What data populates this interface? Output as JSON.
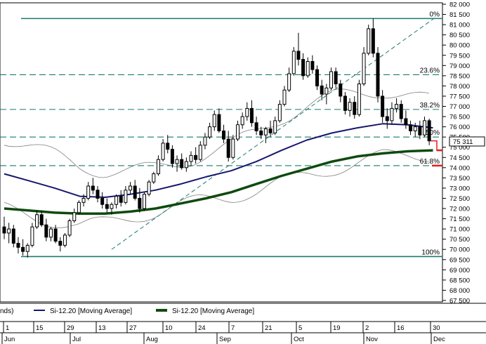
{
  "colors": {
    "background": "#ffffff",
    "fib_line": "#1a7a6e",
    "ma_short": "#17176e",
    "ma_long": "#0f4a0f",
    "bands": "#808080",
    "candle": "#000000",
    "marker": "#e0201e",
    "price_box_border": "#000000"
  },
  "legend": {
    "prefix": "nds)",
    "items": [
      {
        "label": "Si-12.20 [Moving Average]",
        "color": "#17176e"
      },
      {
        "label": "Si-12.20 [Moving Average]",
        "color": "#0f4a0f"
      }
    ]
  },
  "current_price": "75 311",
  "chart_data": {
    "type": "candlestick",
    "title": "",
    "xlabel": "",
    "ylabel": "",
    "ylim": [
      67500,
      82000
    ],
    "y_ticks": [
      "82 000",
      "81 500",
      "81 000",
      "80 500",
      "80 000",
      "79 500",
      "79 000",
      "78 500",
      "78 000",
      "77 500",
      "77 000",
      "76 500",
      "76 000",
      "75 500",
      "75 000",
      "74 500",
      "74 000",
      "73 500",
      "73 000",
      "72 500",
      "72 000",
      "71 500",
      "71 000",
      "70 500",
      "70 000",
      "69 500",
      "69 000",
      "68 500",
      "68 000",
      "67 500"
    ],
    "x_day_ticks": [
      "1",
      "15",
      "29",
      "13",
      "27",
      "10",
      "24",
      "7",
      "21",
      "5",
      "19",
      "2",
      "16",
      "30"
    ],
    "x_month_labels": [
      "Jun",
      "Jul",
      "Aug",
      "Sep",
      "Oct",
      "Nov",
      "Dec"
    ],
    "fibonacci": [
      {
        "label": "0%",
        "value": 81300
      },
      {
        "label": "23.6%",
        "value": 78550
      },
      {
        "label": "38.2%",
        "value": 76850
      },
      {
        "label": "50%",
        "value": 75500
      },
      {
        "label": "61.8%",
        "value": 74100
      },
      {
        "label": "100%",
        "value": 69650
      }
    ],
    "trendline": {
      "from": {
        "day": 23,
        "value": 70000
      },
      "to": {
        "day": 147,
        "value": 81300
      }
    },
    "series": [
      {
        "name": "Si-12.20 [Moving Average]",
        "points": [
          [
            0,
            73700
          ],
          [
            10,
            73350
          ],
          [
            20,
            73000
          ],
          [
            30,
            72600
          ],
          [
            40,
            72550
          ],
          [
            50,
            72700
          ],
          [
            60,
            72900
          ],
          [
            70,
            73200
          ],
          [
            80,
            73550
          ],
          [
            90,
            73850
          ],
          [
            100,
            74300
          ],
          [
            110,
            74850
          ],
          [
            120,
            75350
          ],
          [
            130,
            75700
          ],
          [
            140,
            75950
          ],
          [
            150,
            76150
          ],
          [
            160,
            76100
          ],
          [
            170,
            75950
          ]
        ]
      },
      {
        "name": "Si-12.20 [Moving Average]",
        "points": [
          [
            0,
            72000
          ],
          [
            10,
            71900
          ],
          [
            20,
            71800
          ],
          [
            30,
            71750
          ],
          [
            40,
            71750
          ],
          [
            50,
            71850
          ],
          [
            60,
            72000
          ],
          [
            70,
            72250
          ],
          [
            80,
            72500
          ],
          [
            90,
            72800
          ],
          [
            100,
            73200
          ],
          [
            110,
            73600
          ],
          [
            120,
            73950
          ],
          [
            130,
            74300
          ],
          [
            140,
            74550
          ],
          [
            150,
            74700
          ],
          [
            160,
            74800
          ],
          [
            170,
            74850
          ]
        ]
      }
    ],
    "candles": [
      [
        0,
        71100,
        71600,
        70500,
        70800
      ],
      [
        1,
        70800,
        71300,
        70300,
        71000
      ],
      [
        2,
        71000,
        71200,
        70100,
        70300
      ],
      [
        3,
        70300,
        70600,
        69800,
        70100
      ],
      [
        4,
        70100,
        70500,
        69700,
        69900
      ],
      [
        5,
        69900,
        70300,
        69600,
        70200
      ],
      [
        6,
        70200,
        71300,
        70100,
        71100
      ],
      [
        7,
        71100,
        71900,
        71000,
        71700
      ],
      [
        8,
        71700,
        71900,
        71100,
        71200
      ],
      [
        9,
        71200,
        71500,
        70400,
        70600
      ],
      [
        10,
        70600,
        71100,
        70400,
        71000
      ],
      [
        11,
        71000,
        71200,
        70300,
        70400
      ],
      [
        12,
        70400,
        70600,
        69900,
        70200
      ],
      [
        13,
        70200,
        70800,
        70100,
        70700
      ],
      [
        14,
        70700,
        71500,
        70600,
        71400
      ],
      [
        15,
        71400,
        72000,
        71300,
        71800
      ],
      [
        16,
        71800,
        72400,
        71700,
        72300
      ],
      [
        17,
        72300,
        72700,
        72100,
        72500
      ],
      [
        18,
        72500,
        73300,
        72400,
        73100
      ],
      [
        19,
        73100,
        73500,
        72700,
        72900
      ],
      [
        20,
        72900,
        73100,
        72300,
        72500
      ],
      [
        21,
        72500,
        72800,
        72000,
        72200
      ],
      [
        22,
        72200,
        72500,
        71800,
        72000
      ],
      [
        23,
        72000,
        72300,
        71700,
        72200
      ],
      [
        24,
        72200,
        72700,
        72000,
        72600
      ],
      [
        25,
        72600,
        72900,
        72100,
        72300
      ],
      [
        26,
        72300,
        73100,
        72200,
        72900
      ],
      [
        27,
        72900,
        73300,
        72700,
        73100
      ],
      [
        28,
        73100,
        73400,
        72400,
        72500
      ],
      [
        29,
        72500,
        73000,
        71800,
        72000
      ],
      [
        30,
        72000,
        72800,
        71900,
        72700
      ],
      [
        31,
        72700,
        73400,
        72600,
        73300
      ],
      [
        32,
        73300,
        73800,
        73200,
        73700
      ],
      [
        33,
        73700,
        74600,
        73600,
        74400
      ],
      [
        34,
        74400,
        75400,
        74300,
        75200
      ],
      [
        35,
        75200,
        75600,
        74700,
        74900
      ],
      [
        36,
        74900,
        75100,
        74000,
        74200
      ],
      [
        37,
        74200,
        74600,
        73800,
        74400
      ],
      [
        38,
        74400,
        74700,
        73900,
        74000
      ],
      [
        39,
        74000,
        74500,
        73800,
        74300
      ],
      [
        40,
        74300,
        74800,
        74100,
        74600
      ],
      [
        41,
        74600,
        75000,
        74200,
        74400
      ],
      [
        42,
        74400,
        75300,
        74300,
        75100
      ],
      [
        43,
        75100,
        75700,
        74900,
        75500
      ],
      [
        44,
        75500,
        76200,
        75400,
        76000
      ],
      [
        45,
        76000,
        76800,
        75800,
        76600
      ],
      [
        46,
        76600,
        76900,
        75700,
        75800
      ],
      [
        47,
        75800,
        76100,
        75200,
        75400
      ],
      [
        48,
        75400,
        75800,
        74300,
        74500
      ],
      [
        49,
        74500,
        75600,
        74400,
        75400
      ],
      [
        50,
        75400,
        76300,
        75300,
        76100
      ],
      [
        51,
        76100,
        76700,
        75900,
        76500
      ],
      [
        52,
        76500,
        77200,
        76300,
        76900
      ],
      [
        53,
        76900,
        77300,
        76000,
        76200
      ],
      [
        54,
        76200,
        76500,
        75600,
        75800
      ],
      [
        55,
        75800,
        76000,
        75400,
        75600
      ],
      [
        56,
        75600,
        76000,
        75200,
        75900
      ],
      [
        57,
        75900,
        76300,
        75500,
        75700
      ],
      [
        58,
        75700,
        76500,
        75600,
        76300
      ],
      [
        59,
        76300,
        77300,
        76200,
        77100
      ],
      [
        60,
        77100,
        78000,
        77000,
        77800
      ],
      [
        61,
        77800,
        78900,
        77700,
        78600
      ],
      [
        62,
        78600,
        79900,
        78500,
        79700
      ],
      [
        63,
        79700,
        80600,
        79000,
        79300
      ],
      [
        64,
        79300,
        79600,
        78300,
        78500
      ],
      [
        65,
        78500,
        79400,
        78400,
        79200
      ],
      [
        66,
        79200,
        79500,
        78600,
        78800
      ],
      [
        67,
        78800,
        79000,
        77800,
        78000
      ],
      [
        68,
        78000,
        78300,
        77300,
        77600
      ],
      [
        69,
        77600,
        78100,
        77100,
        77900
      ],
      [
        70,
        77900,
        78900,
        77800,
        78700
      ],
      [
        71,
        78700,
        78900,
        77900,
        78100
      ],
      [
        72,
        78100,
        78300,
        77200,
        77500
      ],
      [
        73,
        77500,
        77700,
        76600,
        76800
      ],
      [
        74,
        76800,
        77400,
        76500,
        77200
      ],
      [
        75,
        77200,
        77500,
        76400,
        76600
      ],
      [
        76,
        76600,
        78300,
        76500,
        78100
      ],
      [
        77,
        78100,
        79900,
        78000,
        79600
      ],
      [
        78,
        79600,
        81000,
        79500,
        80800
      ],
      [
        79,
        80800,
        81300,
        79400,
        79600
      ],
      [
        80,
        79600,
        79900,
        77200,
        77500
      ],
      [
        81,
        77500,
        77800,
        76200,
        76500
      ],
      [
        82,
        76500,
        76900,
        75900,
        76300
      ],
      [
        83,
        76300,
        77200,
        76100,
        76900
      ],
      [
        84,
        76900,
        77400,
        76700,
        77100
      ],
      [
        85,
        77100,
        77300,
        76200,
        76400
      ],
      [
        86,
        76400,
        76800,
        75900,
        76100
      ],
      [
        87,
        76100,
        76300,
        75600,
        75800
      ],
      [
        88,
        75800,
        76200,
        75500,
        76000
      ],
      [
        89,
        76000,
        76300,
        75400,
        75600
      ],
      [
        90,
        75600,
        76500,
        75500,
        76300
      ],
      [
        91,
        76300,
        76400,
        75100,
        75311
      ]
    ],
    "marker_levels": [
      74850,
      74100
    ]
  }
}
